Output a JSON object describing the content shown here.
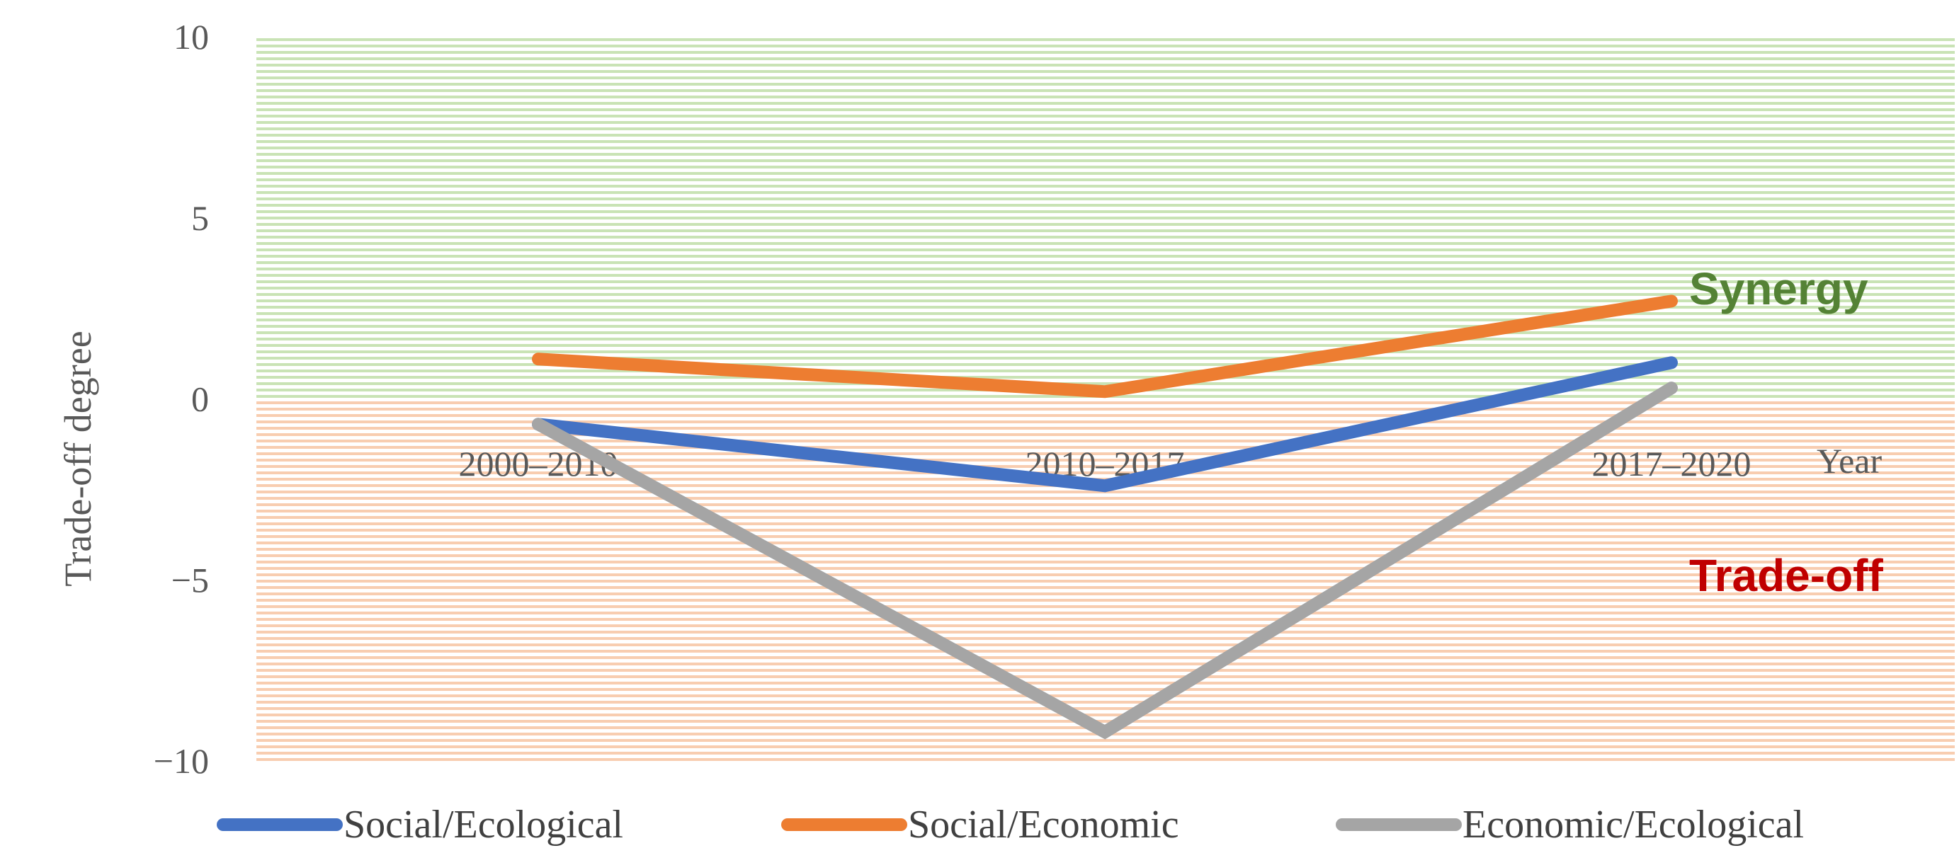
{
  "chart_data": {
    "type": "line",
    "categories": [
      "2000–2010",
      "2010–2017",
      "2017–2020"
    ],
    "xlabel": "Year",
    "ylabel": "Trade-off degree",
    "ylim": [
      -10,
      10
    ],
    "yticks": [
      10,
      5,
      0,
      -5,
      -10
    ],
    "ytick_labels": [
      "10",
      "5",
      "0",
      "−5",
      "−10"
    ],
    "grid": false,
    "legend_position": "bottom",
    "zones": [
      {
        "label": "Synergy",
        "from": 0,
        "to": 10,
        "color": "#70ad47",
        "label_color": "#548235"
      },
      {
        "label": "Trade-off",
        "from": -10,
        "to": 0,
        "color": "#ed7d31",
        "label_color": "#c00000"
      }
    ],
    "series": [
      {
        "name": "Social/Ecological",
        "values": [
          -0.7,
          -2.4,
          1.0
        ],
        "color": "#4472c4"
      },
      {
        "name": "Social/Economic",
        "values": [
          1.1,
          0.2,
          2.7
        ],
        "color": "#ed7d31"
      },
      {
        "name": "Economic/Ecological",
        "values": [
          -0.7,
          -9.2,
          0.3
        ],
        "color": "#a5a5a5"
      }
    ]
  }
}
